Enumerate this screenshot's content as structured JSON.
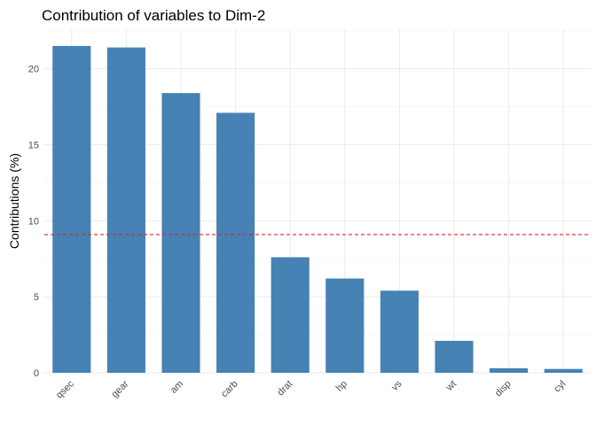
{
  "chart_data": {
    "type": "bar",
    "title": "Contribution of variables to Dim-2",
    "xlabel": "",
    "ylabel": "Contributions (%)",
    "categories": [
      "qsec",
      "gear",
      "am",
      "carb",
      "drat",
      "hp",
      "vs",
      "wt",
      "disp",
      "cyl"
    ],
    "values": [
      21.5,
      21.4,
      18.4,
      17.1,
      7.6,
      6.2,
      5.4,
      2.1,
      0.3,
      0.25
    ],
    "ylim": [
      0,
      22.6
    ],
    "yticks": [
      0,
      5,
      10,
      15,
      20
    ],
    "reference_line": 9.09,
    "bar_color": "#4682B4",
    "reference_line_color": "#D62728",
    "grid": true,
    "legend": "none"
  }
}
